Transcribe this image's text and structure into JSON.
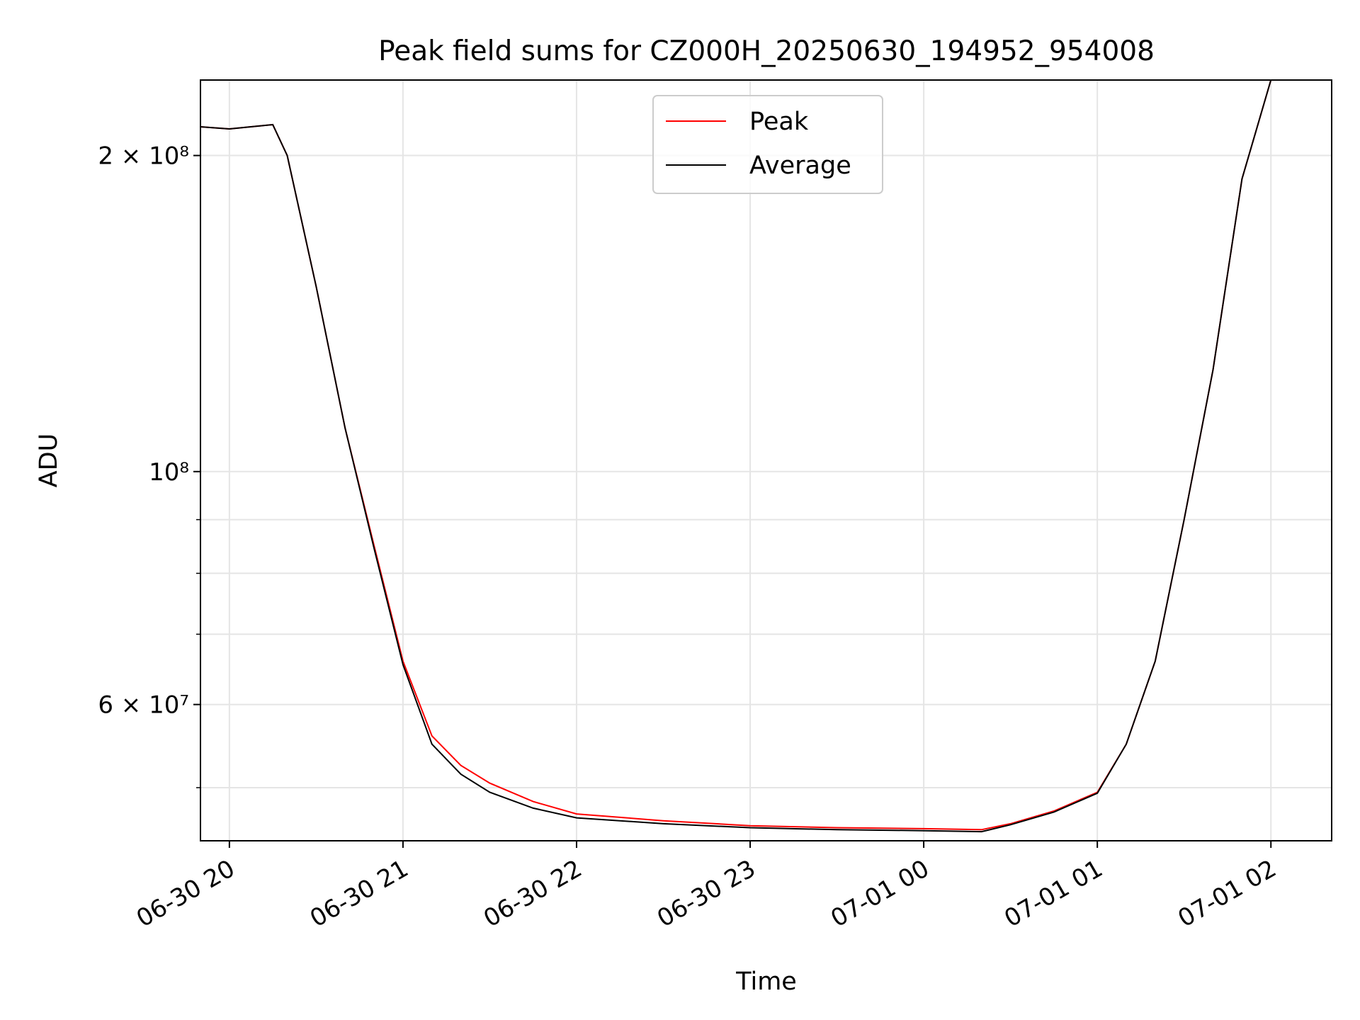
{
  "chart_data": {
    "type": "line",
    "title": "Peak field sums for CZ000H_20250630_194952_954008",
    "xlabel": "Time",
    "ylabel": "ADU",
    "yscale": "log",
    "ylim": [
      44500000,
      236000000
    ],
    "xlim": [
      "2025-06-30 19:50",
      "2025-07-01 02:21"
    ],
    "x_ticks": [
      "06-30 20",
      "06-30 21",
      "06-30 22",
      "06-30 23",
      "07-01 00",
      "07-01 01",
      "07-01 02"
    ],
    "y_ticks": [
      {
        "value": 200000000,
        "label": "2 × 10⁸"
      },
      {
        "value": 100000000,
        "label": "10⁸"
      },
      {
        "value": 60000000,
        "label": "6 × 10⁷"
      }
    ],
    "grid": true,
    "legend_position": "upper-center",
    "series": [
      {
        "name": "Peak",
        "color": "#ff0000",
        "points": [
          [
            "2025-06-30 19:50",
            213000000
          ],
          [
            "2025-06-30 20:00",
            212000000
          ],
          [
            "2025-06-30 20:15",
            214000000
          ],
          [
            "2025-06-30 20:20",
            200000000
          ],
          [
            "2025-06-30 20:30",
            150000000
          ],
          [
            "2025-06-30 20:40",
            110000000
          ],
          [
            "2025-06-30 20:50",
            85000000
          ],
          [
            "2025-06-30 21:00",
            66000000
          ],
          [
            "2025-06-30 21:10",
            56000000
          ],
          [
            "2025-06-30 21:20",
            52500000
          ],
          [
            "2025-06-30 21:30",
            50500000
          ],
          [
            "2025-06-30 21:45",
            48500000
          ],
          [
            "2025-06-30 22:00",
            47200000
          ],
          [
            "2025-06-30 22:30",
            46500000
          ],
          [
            "2025-06-30 23:00",
            46000000
          ],
          [
            "2025-06-30 23:30",
            45800000
          ],
          [
            "2025-07-01 00:00",
            45700000
          ],
          [
            "2025-07-01 00:20",
            45600000
          ],
          [
            "2025-07-01 00:30",
            46200000
          ],
          [
            "2025-07-01 00:45",
            47500000
          ],
          [
            "2025-07-01 01:00",
            49500000
          ],
          [
            "2025-07-01 01:10",
            55000000
          ],
          [
            "2025-07-01 01:20",
            66000000
          ],
          [
            "2025-07-01 01:30",
            90000000
          ],
          [
            "2025-07-01 01:40",
            125000000
          ],
          [
            "2025-07-01 01:50",
            190000000
          ],
          [
            "2025-07-01 02:00",
            236000000
          ],
          [
            "2025-07-01 02:21",
            236000000
          ]
        ]
      },
      {
        "name": "Average",
        "color": "#000000",
        "points": [
          [
            "2025-06-30 19:50",
            213000000
          ],
          [
            "2025-06-30 20:00",
            212000000
          ],
          [
            "2025-06-30 20:15",
            214000000
          ],
          [
            "2025-06-30 20:20",
            200000000
          ],
          [
            "2025-06-30 20:30",
            150000000
          ],
          [
            "2025-06-30 20:40",
            110000000
          ],
          [
            "2025-06-30 20:50",
            84500000
          ],
          [
            "2025-06-30 21:00",
            65500000
          ],
          [
            "2025-06-30 21:10",
            55000000
          ],
          [
            "2025-06-30 21:20",
            51500000
          ],
          [
            "2025-06-30 21:30",
            49500000
          ],
          [
            "2025-06-30 21:45",
            47800000
          ],
          [
            "2025-06-30 22:00",
            46800000
          ],
          [
            "2025-06-30 22:30",
            46200000
          ],
          [
            "2025-06-30 23:00",
            45800000
          ],
          [
            "2025-06-30 23:30",
            45600000
          ],
          [
            "2025-07-01 00:00",
            45500000
          ],
          [
            "2025-07-01 00:20",
            45400000
          ],
          [
            "2025-07-01 00:30",
            46100000
          ],
          [
            "2025-07-01 00:45",
            47400000
          ],
          [
            "2025-07-01 01:00",
            49400000
          ],
          [
            "2025-07-01 01:10",
            55000000
          ],
          [
            "2025-07-01 01:20",
            66000000
          ],
          [
            "2025-07-01 01:30",
            90000000
          ],
          [
            "2025-07-01 01:40",
            125000000
          ],
          [
            "2025-07-01 01:50",
            190000000
          ],
          [
            "2025-07-01 02:00",
            236000000
          ],
          [
            "2025-07-01 02:21",
            236000000
          ]
        ]
      }
    ]
  }
}
